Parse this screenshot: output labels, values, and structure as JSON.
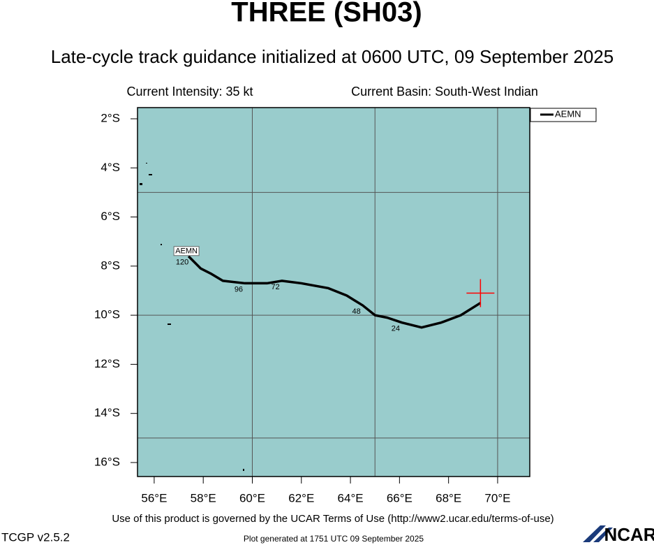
{
  "chart_data": {
    "type": "track",
    "title": "THREE (SH03)",
    "subtitle": "Late-cycle track guidance initialized at 0600 UTC, 09 September 2025",
    "intensity_text": "Current Intensity: 35 kt",
    "basin_text": "Current Basin: South-West Indian",
    "terms_text": "Use of this product is governed by the UCAR Terms of Use (http://www2.ucar.edu/terms-of-use)",
    "version_text": "TCGP v2.5.2",
    "generated_text": "Plot generated at 1751 UTC   09 September 2025",
    "logo_text": "NCAR",
    "xlim": [
      55.32,
      71.31
    ],
    "ylim": [
      -16.57,
      -1.545
    ],
    "xticks": [
      {
        "value": 56,
        "label": "56°E"
      },
      {
        "value": 58,
        "label": "58°E"
      },
      {
        "value": 60,
        "label": "60°E"
      },
      {
        "value": 62,
        "label": "62°E"
      },
      {
        "value": 64,
        "label": "64°E"
      },
      {
        "value": 66,
        "label": "66°E"
      },
      {
        "value": 68,
        "label": "68°E"
      },
      {
        "value": 70,
        "label": "70°E"
      }
    ],
    "yticks": [
      {
        "value": -2,
        "label": "2°S"
      },
      {
        "value": -4,
        "label": "4°S"
      },
      {
        "value": -6,
        "label": "6°S"
      },
      {
        "value": -8,
        "label": "8°S"
      },
      {
        "value": -10,
        "label": "10°S"
      },
      {
        "value": -12,
        "label": "12°S"
      },
      {
        "value": -14,
        "label": "14°S"
      },
      {
        "value": -16,
        "label": "16°S"
      }
    ],
    "xgrid": [
      60,
      65,
      70
    ],
    "ygrid": [
      -5,
      -10,
      -15
    ],
    "ocean_color": "#99cccc",
    "grid_color": "#555555",
    "current_position": {
      "lon": 69.3,
      "lat": -9.1,
      "color": "#ff0000"
    },
    "series": [
      {
        "name": "AEMN",
        "color": "#000000",
        "x": [
          69.3,
          68.5,
          67.7,
          66.9,
          66.1,
          65.5,
          65.0,
          64.5,
          63.85,
          63.1,
          62.0,
          61.2,
          60.6,
          59.7,
          58.8,
          58.3,
          57.9,
          57.4
        ],
        "values": [
          -9.5,
          -10.0,
          -10.3,
          -10.5,
          -10.3,
          -10.1,
          -10.0,
          -9.6,
          -9.2,
          -8.9,
          -8.7,
          -8.6,
          -8.7,
          -8.7,
          -8.6,
          -8.3,
          -8.1,
          -7.6
        ],
        "hour_labels": [
          null,
          null,
          null,
          null,
          "24",
          null,
          null,
          "48",
          null,
          null,
          null,
          "72",
          null,
          "96",
          null,
          null,
          null,
          "120"
        ]
      }
    ],
    "legend": "upper right"
  }
}
